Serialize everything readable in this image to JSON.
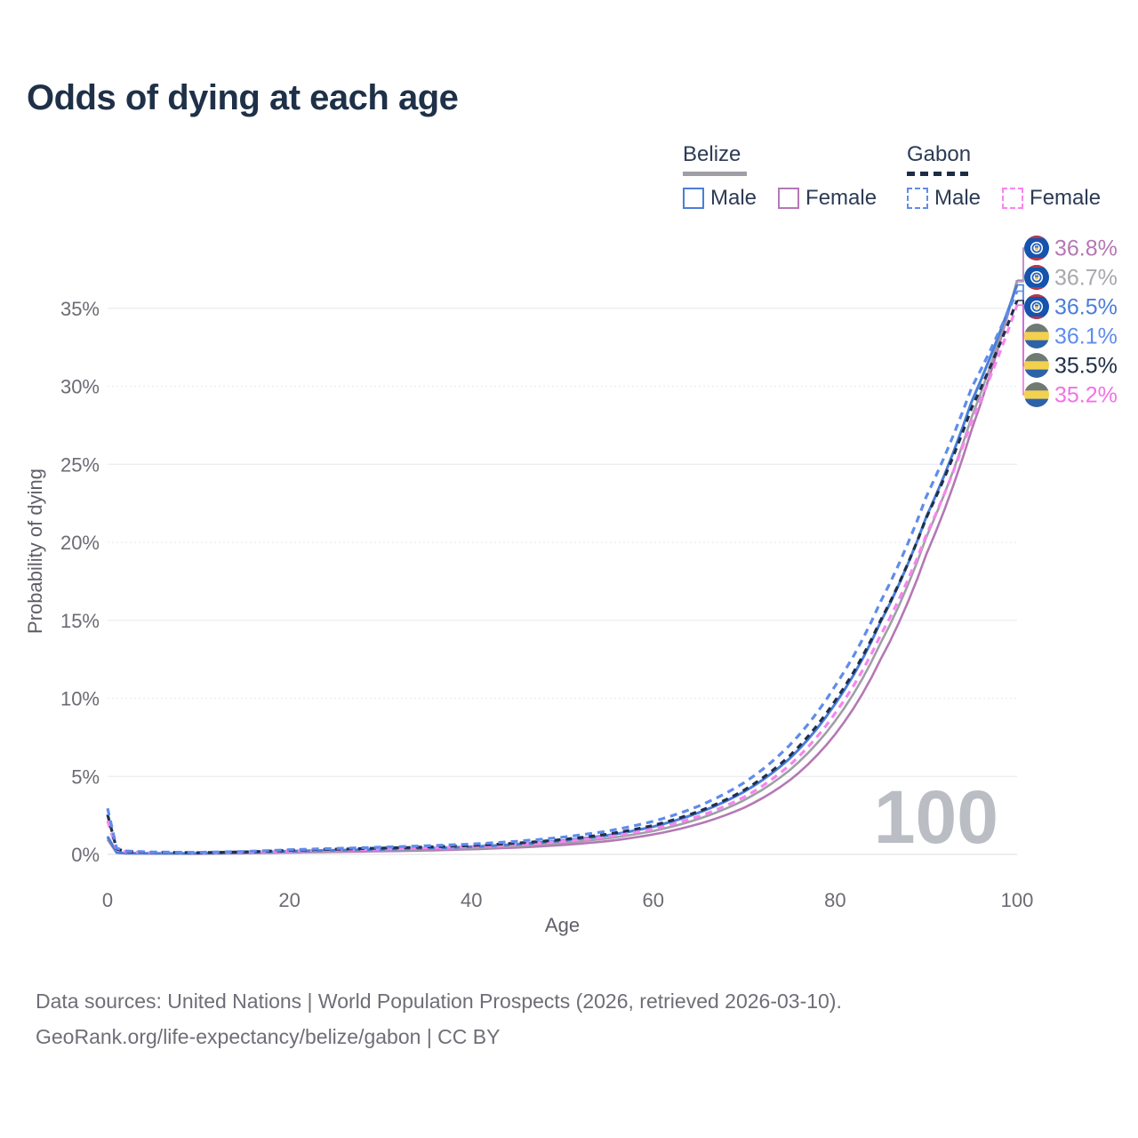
{
  "title": "Odds of dying at each age",
  "legend": {
    "groups": [
      {
        "id": "belize",
        "label": "Belize",
        "line_style": "solid",
        "line_color": "#9e9ea4",
        "items": [
          {
            "label": "Male",
            "color": "#4a7ed9",
            "style": "solid"
          },
          {
            "label": "Female",
            "color": "#b478b4",
            "style": "solid"
          }
        ]
      },
      {
        "id": "gabon",
        "label": "Gabon",
        "line_style": "dashed",
        "line_color": "#1e2d45",
        "items": [
          {
            "label": "Male",
            "color": "#5f8cec",
            "style": "dashed"
          },
          {
            "label": "Female",
            "color": "#f884ef",
            "style": "dashed"
          }
        ]
      }
    ]
  },
  "chart_data": {
    "type": "line",
    "title": "Odds of dying at each age",
    "xlabel": "Age",
    "ylabel": "Probability of dying",
    "xlim": [
      0,
      100
    ],
    "ylim": [
      0,
      37
    ],
    "x_ticks": [
      0,
      20,
      40,
      60,
      80,
      100
    ],
    "y_ticks": [
      0,
      5,
      10,
      15,
      20,
      25,
      30,
      35
    ],
    "y_tick_suffix": "%",
    "grid": true,
    "legend_position": "top-right",
    "watermark": "100",
    "ages": [
      0,
      1,
      2,
      5,
      10,
      15,
      20,
      25,
      30,
      35,
      40,
      45,
      50,
      55,
      60,
      65,
      70,
      75,
      80,
      85,
      90,
      95,
      100
    ],
    "series": [
      {
        "name": "Belize Female",
        "country": "Belize",
        "sex": "Female",
        "color": "#b478b4",
        "dash": "none",
        "width": 2.6,
        "values": [
          0.95,
          0.1,
          0.06,
          0.05,
          0.04,
          0.07,
          0.12,
          0.16,
          0.2,
          0.25,
          0.33,
          0.44,
          0.6,
          0.85,
          1.28,
          1.95,
          3.0,
          4.75,
          7.7,
          12.5,
          19.2,
          27.2,
          36.8
        ]
      },
      {
        "name": "Belize",
        "country": "Belize",
        "sex": "Both",
        "color": "#9fa0a6",
        "dash": "none",
        "width": 2.6,
        "values": [
          1.05,
          0.11,
          0.07,
          0.05,
          0.05,
          0.09,
          0.16,
          0.21,
          0.26,
          0.32,
          0.41,
          0.54,
          0.73,
          1.03,
          1.5,
          2.28,
          3.48,
          5.4,
          8.55,
          13.55,
          20.3,
          28.0,
          36.7
        ]
      },
      {
        "name": "Belize Male",
        "country": "Belize",
        "sex": "Male",
        "color": "#4a7ed9",
        "dash": "none",
        "width": 3,
        "values": [
          1.15,
          0.12,
          0.08,
          0.06,
          0.06,
          0.12,
          0.21,
          0.27,
          0.32,
          0.39,
          0.49,
          0.65,
          0.88,
          1.22,
          1.78,
          2.68,
          4.02,
          6.15,
          9.65,
          14.9,
          21.6,
          29.0,
          36.5
        ]
      },
      {
        "name": "Gabon Female",
        "country": "Gabon",
        "sex": "Female",
        "color": "#f884ef",
        "dash": "8 6",
        "width": 3.2,
        "values": [
          2.15,
          0.3,
          0.17,
          0.11,
          0.1,
          0.14,
          0.22,
          0.28,
          0.34,
          0.41,
          0.5,
          0.63,
          0.83,
          1.14,
          1.63,
          2.44,
          3.68,
          5.72,
          9.05,
          14.05,
          20.45,
          27.75,
          35.2
        ]
      },
      {
        "name": "Gabon",
        "country": "Gabon",
        "sex": "Both",
        "color": "#20304a",
        "dash": "7 6",
        "width": 3.2,
        "values": [
          2.55,
          0.35,
          0.19,
          0.13,
          0.11,
          0.16,
          0.26,
          0.33,
          0.4,
          0.47,
          0.57,
          0.72,
          0.95,
          1.3,
          1.86,
          2.76,
          4.12,
          6.32,
          9.85,
          15.0,
          21.55,
          28.6,
          35.5
        ]
      },
      {
        "name": "Gabon Male",
        "country": "Gabon",
        "sex": "Male",
        "color": "#5f8cec",
        "dash": "8 6",
        "width": 3.2,
        "values": [
          2.95,
          0.4,
          0.22,
          0.15,
          0.13,
          0.19,
          0.3,
          0.38,
          0.46,
          0.55,
          0.66,
          0.84,
          1.1,
          1.5,
          2.12,
          3.1,
          4.6,
          7.0,
          10.8,
          16.2,
          22.9,
          29.9,
          36.1
        ]
      }
    ],
    "end_labels": [
      {
        "text": "36.8%",
        "value": 36.8,
        "color": "#b478b4",
        "flag": "belize",
        "series": "Belize Female"
      },
      {
        "text": "36.7%",
        "value": 36.7,
        "color": "#a7a7ad",
        "flag": "belize",
        "series": "Belize"
      },
      {
        "text": "36.5%",
        "value": 36.5,
        "color": "#4a7ed9",
        "flag": "belize",
        "series": "Belize Male"
      },
      {
        "text": "36.1%",
        "value": 36.1,
        "color": "#5f8cec",
        "flag": "gabon",
        "series": "Gabon Male"
      },
      {
        "text": "35.5%",
        "value": 35.5,
        "color": "#20304a",
        "flag": "gabon",
        "series": "Gabon"
      },
      {
        "text": "35.2%",
        "value": 35.2,
        "color": "#f470e8",
        "flag": "gabon",
        "series": "Gabon Female"
      }
    ]
  },
  "footer": {
    "line1": "Data sources: United Nations | World Population Prospects (2026, retrieved 2026-03-10).",
    "line2": "GeoRank.org/life-expectancy/belize/gabon | CC BY"
  }
}
